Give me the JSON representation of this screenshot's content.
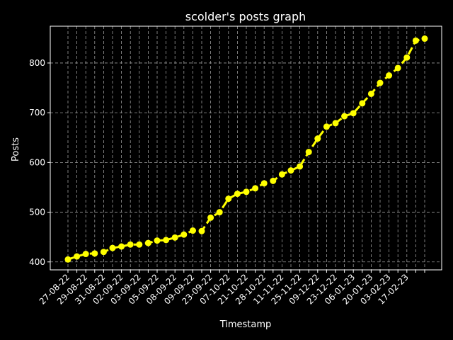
{
  "chart_data": {
    "type": "line",
    "title": "scolder's posts graph",
    "xlabel": "Timestamp",
    "ylabel": "Posts",
    "ylim": [
      384,
      874
    ],
    "yticks": [
      400,
      500,
      600,
      700,
      800
    ],
    "grid": true,
    "grid_style": "dashed",
    "x_tick_labels": [
      "27-08-22",
      "29-08-22",
      "31-08-22",
      "02-09-22",
      "03-09-22",
      "05-09-22",
      "08-09-22",
      "09-09-22",
      "23-09-22",
      "07-10-22",
      "21-10-22",
      "28-10-22",
      "11-11-22",
      "25-11-22",
      "09-12-22",
      "23-12-22",
      "06-01-23",
      "20-01-23",
      "03-02-23",
      "17-02-23"
    ],
    "x_tick_every": 2,
    "line_color": "#ffff00",
    "background": "#000000",
    "series": [
      {
        "values": [
          405,
          411,
          416,
          417,
          420,
          428,
          431,
          435,
          435,
          438,
          443,
          444,
          449,
          455,
          463,
          462,
          489,
          500,
          527,
          537,
          541,
          548,
          558,
          563,
          576,
          584,
          592,
          621,
          648,
          672,
          679,
          693,
          699,
          719,
          738,
          760,
          775,
          790,
          811,
          845,
          849
        ]
      }
    ]
  }
}
